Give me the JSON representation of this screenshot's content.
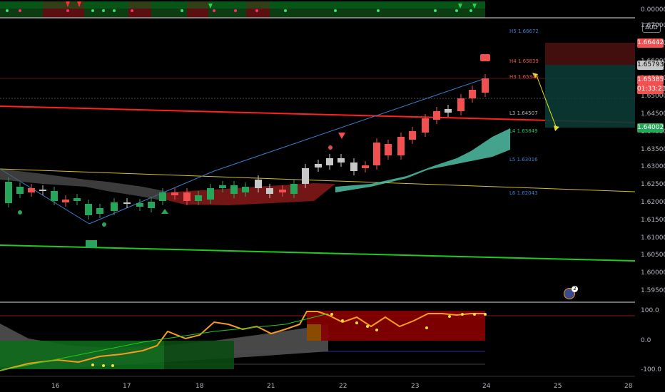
{
  "price_axis": {
    "top_value": "0.00000",
    "currency": "AUD",
    "ticks": [
      "1.67000",
      "1.66500",
      "1.66000",
      "1.65500",
      "1.65000",
      "1.64500",
      "1.64000",
      "1.63500",
      "1.63000",
      "1.62500",
      "1.62000",
      "1.61500",
      "1.61000",
      "1.60500",
      "1.60000",
      "1.59500"
    ],
    "badges": {
      "upper": "1.66442",
      "current": "1.65793",
      "last": "1.65385",
      "countdown": "01:33:23",
      "lower": "1.64002"
    }
  },
  "osc_axis": {
    "ticks": [
      "100.0",
      "0.0",
      "-100.0"
    ]
  },
  "dates": [
    "16",
    "17",
    "18",
    "21",
    "22",
    "23",
    "24",
    "25",
    "28"
  ],
  "pivots": {
    "h5": "H5 1.66672",
    "h4": "H4 1.65839",
    "h3": "H3 1.65340",
    "l3": "L3 1.64507",
    "l4": "L4 1.63849",
    "l5": "L5 1.63016",
    "l6": "L6 1.62043"
  },
  "alerts_badge": "2",
  "colors": {
    "bull": "#26a65b",
    "bear": "#f05050",
    "neutral": "#c8c8c8",
    "trendline_red": "#ff2020",
    "trendline_green": "#1ecc20",
    "trendline_yellow": "#e0c020",
    "ichimoku_cloud": "#4fbfa5",
    "oscillator": "#f59b20"
  }
}
